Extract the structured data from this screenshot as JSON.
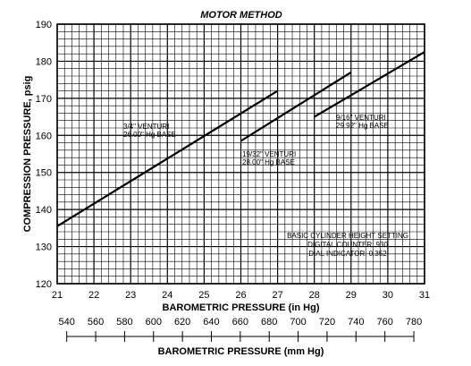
{
  "chart_data": {
    "type": "line",
    "title": "MOTOR METHOD",
    "xlabel": "BAROMETRIC PRESSURE (in Hg)",
    "ylabel": "COMPRESSION PRESSURE, psig",
    "xlim": [
      21,
      31
    ],
    "ylim": [
      120,
      190
    ],
    "x_ticks": [
      "21",
      "22",
      "23",
      "24",
      "25",
      "26",
      "27",
      "28",
      "29",
      "30",
      "31"
    ],
    "y_ticks": [
      "120",
      "130",
      "140",
      "150",
      "160",
      "170",
      "180",
      "190"
    ],
    "grid": "on, minor and major",
    "secondary_x": {
      "label": "BAROMETRIC PRESSURE (mm Hg)",
      "ticks": [
        "540",
        "560",
        "580",
        "600",
        "620",
        "640",
        "660",
        "680",
        "700",
        "720",
        "740",
        "760",
        "780"
      ],
      "range_mm": [
        533.4,
        787.4
      ]
    },
    "series": [
      {
        "label_lines": [
          "3/4\" VENTURI",
          "26.00\" Hg BASE"
        ],
        "x": [
          21,
          27
        ],
        "y": [
          135.5,
          172
        ]
      },
      {
        "label_lines": [
          "19/32\" VENTURI",
          "28.00\" Hg BASE"
        ],
        "x": [
          26,
          29
        ],
        "y": [
          158.5,
          177
        ]
      },
      {
        "label_lines": [
          "9/16\" VENTURI",
          "29.92\" Hg BASE"
        ],
        "x": [
          28,
          31
        ],
        "y": [
          165,
          182.5
        ]
      }
    ],
    "annotation": {
      "lines": [
        "BASIC CYLINDER HEIGHT SETTING",
        "DIGITAL COUNTER: 930",
        "DIAL INDICATOR: 0.352"
      ]
    }
  }
}
